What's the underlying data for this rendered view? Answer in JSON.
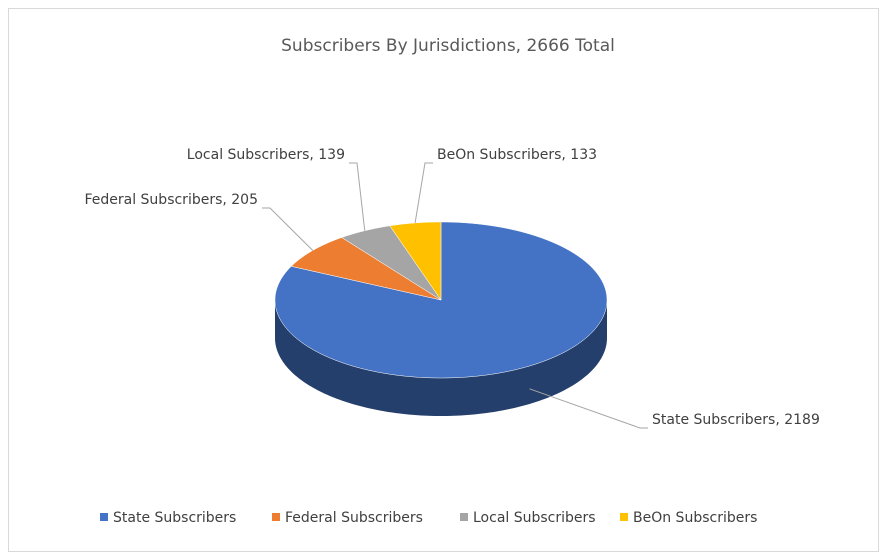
{
  "chart_data": {
    "type": "pie",
    "title": "Subscribers By Jurisdictions, 2666 Total",
    "categories": [
      "State Subscribers",
      "Federal Subscribers",
      "Local Subscribers",
      "BeOn Subscribers"
    ],
    "values": [
      2189,
      205,
      139,
      133
    ],
    "value_labels": [
      "State Subscribers, 2189",
      "Federal Subscribers, 205",
      "Local Subscribers, 139",
      "BeOn Subscribers, 133"
    ],
    "colors": [
      "#4472c4",
      "#ed7d31",
      "#a5a5a5",
      "#ffc000"
    ],
    "legend": "bottom"
  }
}
